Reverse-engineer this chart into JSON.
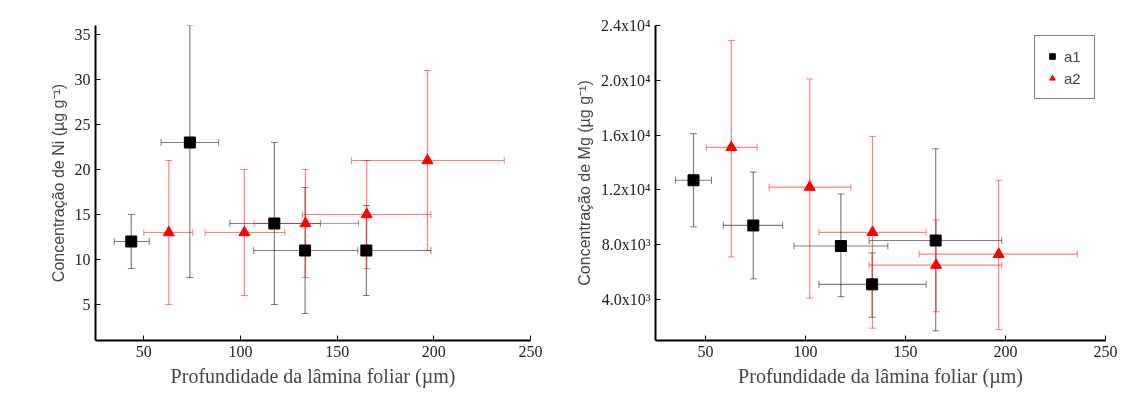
{
  "chart_data": [
    {
      "type": "scatter",
      "xlabel": "Profundidade da lâmina foliar (µm)",
      "ylabel": "Concentração de Ni (µg g⁻¹)",
      "xlim": [
        25,
        250
      ],
      "ylim": [
        1,
        36
      ],
      "xticks": [
        50,
        100,
        150,
        200,
        250
      ],
      "yticks": [
        5,
        10,
        15,
        20,
        25,
        30,
        35
      ],
      "grid": false,
      "legend": false,
      "series": [
        {
          "color": "#000000",
          "marker": "square",
          "x": [
            43.5,
            73.8,
            117.5,
            133.4,
            165.1
          ],
          "values": [
            12,
            23,
            14,
            11,
            11
          ],
          "errors": [
            [
              9,
              15
            ],
            [
              8,
              36
            ],
            [
              5,
              23
            ],
            [
              4,
              18
            ],
            [
              6,
              16
            ]
          ],
          "xerrors": [
            [
              34.7,
              52.8
            ],
            [
              58.9,
              88.7
            ],
            [
              94.5,
              141.3
            ],
            [
              106.8,
              160.7
            ],
            [
              165.1,
              198.5
            ]
          ]
        },
        {
          "color": "#ff0000",
          "marker": "triangle",
          "x": [
            62.9,
            102,
            133.6,
            165.3,
            196.7
          ],
          "values": [
            13,
            13,
            14,
            15,
            21
          ],
          "errors": [
            [
              5,
              21
            ],
            [
              6,
              20
            ],
            [
              8,
              20
            ],
            [
              9,
              21
            ],
            [
              11,
              31
            ]
          ],
          "xerrors": [
            [
              50,
              75.3
            ],
            [
              81.7,
              122.9
            ],
            [
              107,
              161
            ],
            [
              132,
              198.5
            ],
            [
              157.4,
              236.4
            ]
          ]
        }
      ]
    },
    {
      "type": "scatter",
      "xlabel": "Profundidade da lâmina foliar (µm)",
      "ylabel": "Concentração de Mg (µg g⁻¹)",
      "xlim": [
        25,
        250
      ],
      "ylim": [
        1000,
        24000
      ],
      "xticks": [
        50,
        100,
        150,
        200,
        250
      ],
      "yticks": [
        {
          "value": 4000,
          "label": "4.0x10³"
        },
        {
          "value": 8000,
          "label": "8.0x10³"
        },
        {
          "value": 12000,
          "label": "1.2x10⁴"
        },
        {
          "value": 16000,
          "label": "1.6x10⁴"
        },
        {
          "value": 20000,
          "label": "2.0x10⁴"
        },
        {
          "value": 24000,
          "label": "2.4x10⁴"
        }
      ],
      "grid": false,
      "legend": "top right",
      "series": [
        {
          "name": "a1",
          "color": "#000000",
          "marker": "square",
          "x": [
            44.0,
            73.9,
            117.7,
            133.3,
            165.1
          ],
          "values": [
            12700,
            9400,
            7900,
            5100,
            8300
          ],
          "errors": [
            [
              9300,
              16100
            ],
            [
              5500,
              13300
            ],
            [
              4200,
              11700
            ],
            [
              2700,
              7400
            ],
            [
              1700,
              15000
            ]
          ],
          "xerrors": [
            [
              35,
              53
            ],
            [
              58.9,
              88.6
            ],
            [
              94.2,
              141.2
            ],
            [
              106.7,
              160.3
            ],
            [
              131.8,
              198.1
            ]
          ]
        },
        {
          "name": "a2",
          "color": "#ff0000",
          "marker": "triangle",
          "x": [
            62.9,
            102.1,
            133.5,
            165.3,
            196.6
          ],
          "values": [
            15100,
            12200,
            8900,
            6500,
            7300
          ],
          "errors": [
            [
              7100,
              22900
            ],
            [
              4100,
              20100
            ],
            [
              1900,
              15900
            ],
            [
              3100,
              9800
            ],
            [
              1800,
              12700
            ]
          ],
          "xerrors": [
            [
              50.4,
              75.8
            ],
            [
              81.8,
              122.7
            ],
            [
              106.7,
              160.3
            ],
            [
              131.8,
              198.1
            ],
            [
              156.8,
              235.9
            ]
          ]
        }
      ]
    }
  ]
}
